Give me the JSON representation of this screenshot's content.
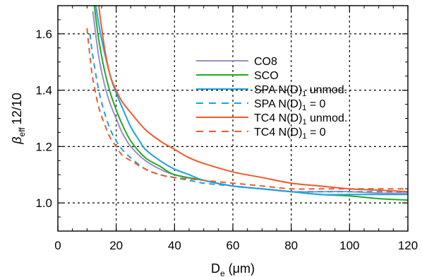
{
  "chart_data": {
    "type": "line",
    "xlabel": {
      "main": "D",
      "sub": "e",
      "unit": " (μm)"
    },
    "ylabel": {
      "main": "β",
      "sub": "eff",
      "rest": "12/10"
    },
    "xlim": [
      0,
      120
    ],
    "ylim": [
      0.9,
      1.7
    ],
    "xticks": [
      0,
      20,
      40,
      60,
      80,
      100,
      120
    ],
    "yticks": [
      1.0,
      1.2,
      1.4,
      1.6
    ],
    "xtick_labels": [
      "0",
      "20",
      "40",
      "60",
      "80",
      "100",
      "120"
    ],
    "ytick_labels": [
      "1.0",
      "1.2",
      "1.4",
      "1.6"
    ],
    "grid": true,
    "legend_position": "center-right",
    "series": [
      {
        "name": "CO8",
        "color": "#9b8ec4",
        "dash": "solid",
        "x": [
          12,
          14,
          16,
          18,
          20,
          22,
          25,
          30,
          35,
          40,
          50,
          60,
          70,
          80,
          90,
          100,
          110,
          120
        ],
        "y": [
          1.68,
          1.52,
          1.42,
          1.35,
          1.3,
          1.25,
          1.2,
          1.15,
          1.12,
          1.1,
          1.08,
          1.06,
          1.05,
          1.04,
          1.04,
          1.04,
          1.035,
          1.035
        ]
      },
      {
        "name": "SCO",
        "color": "#22aa22",
        "dash": "solid",
        "x": [
          12.5,
          14,
          16,
          18,
          20,
          22,
          25,
          30,
          35,
          40,
          50,
          60,
          70,
          80,
          90,
          100,
          110,
          120
        ],
        "y": [
          1.7,
          1.58,
          1.47,
          1.39,
          1.33,
          1.28,
          1.22,
          1.16,
          1.13,
          1.1,
          1.08,
          1.06,
          1.05,
          1.04,
          1.03,
          1.025,
          1.015,
          1.01
        ]
      },
      {
        "name": "SPA N(D)₁ unmod.",
        "color": "#22a0e0",
        "dash": "solid",
        "x": [
          13,
          15,
          18,
          20,
          22,
          25,
          28,
          30,
          35,
          40,
          45,
          50,
          60,
          70,
          80,
          90,
          100,
          110,
          120
        ],
        "y": [
          1.7,
          1.58,
          1.45,
          1.39,
          1.34,
          1.27,
          1.22,
          1.19,
          1.15,
          1.12,
          1.1,
          1.08,
          1.06,
          1.05,
          1.04,
          1.03,
          1.03,
          1.03,
          1.03
        ]
      },
      {
        "name": "SPA N(D)₁ = 0",
        "color": "#22a0e0",
        "dash": "dashed",
        "x": [
          11,
          12,
          14,
          16,
          18,
          20,
          22,
          25,
          30,
          35,
          40,
          45,
          50,
          60,
          70,
          80,
          90,
          100,
          110,
          120
        ],
        "y": [
          1.6,
          1.52,
          1.4,
          1.32,
          1.26,
          1.22,
          1.19,
          1.16,
          1.12,
          1.1,
          1.09,
          1.08,
          1.07,
          1.06,
          1.05,
          1.04,
          1.04,
          1.04,
          1.04,
          1.04
        ]
      },
      {
        "name": "TC4 N(D)₁ unmod.",
        "color": "#f05a28",
        "dash": "solid",
        "x": [
          14,
          16,
          18,
          20,
          22,
          25,
          30,
          35,
          40,
          45,
          50,
          60,
          70,
          80,
          90,
          100,
          110,
          120
        ],
        "y": [
          1.7,
          1.55,
          1.45,
          1.4,
          1.36,
          1.32,
          1.26,
          1.22,
          1.19,
          1.16,
          1.14,
          1.11,
          1.09,
          1.07,
          1.06,
          1.05,
          1.045,
          1.04
        ]
      },
      {
        "name": "TC4 N(D)₁ = 0",
        "color": "#f05a28",
        "dash": "dashed",
        "x": [
          10,
          11,
          12,
          14,
          16,
          18,
          20,
          22,
          25,
          30,
          35,
          40,
          50,
          60,
          70,
          80,
          90,
          100,
          110,
          120
        ],
        "y": [
          1.62,
          1.52,
          1.44,
          1.34,
          1.28,
          1.23,
          1.2,
          1.17,
          1.15,
          1.12,
          1.1,
          1.09,
          1.08,
          1.07,
          1.06,
          1.05,
          1.05,
          1.05,
          1.05,
          1.05
        ]
      }
    ]
  }
}
